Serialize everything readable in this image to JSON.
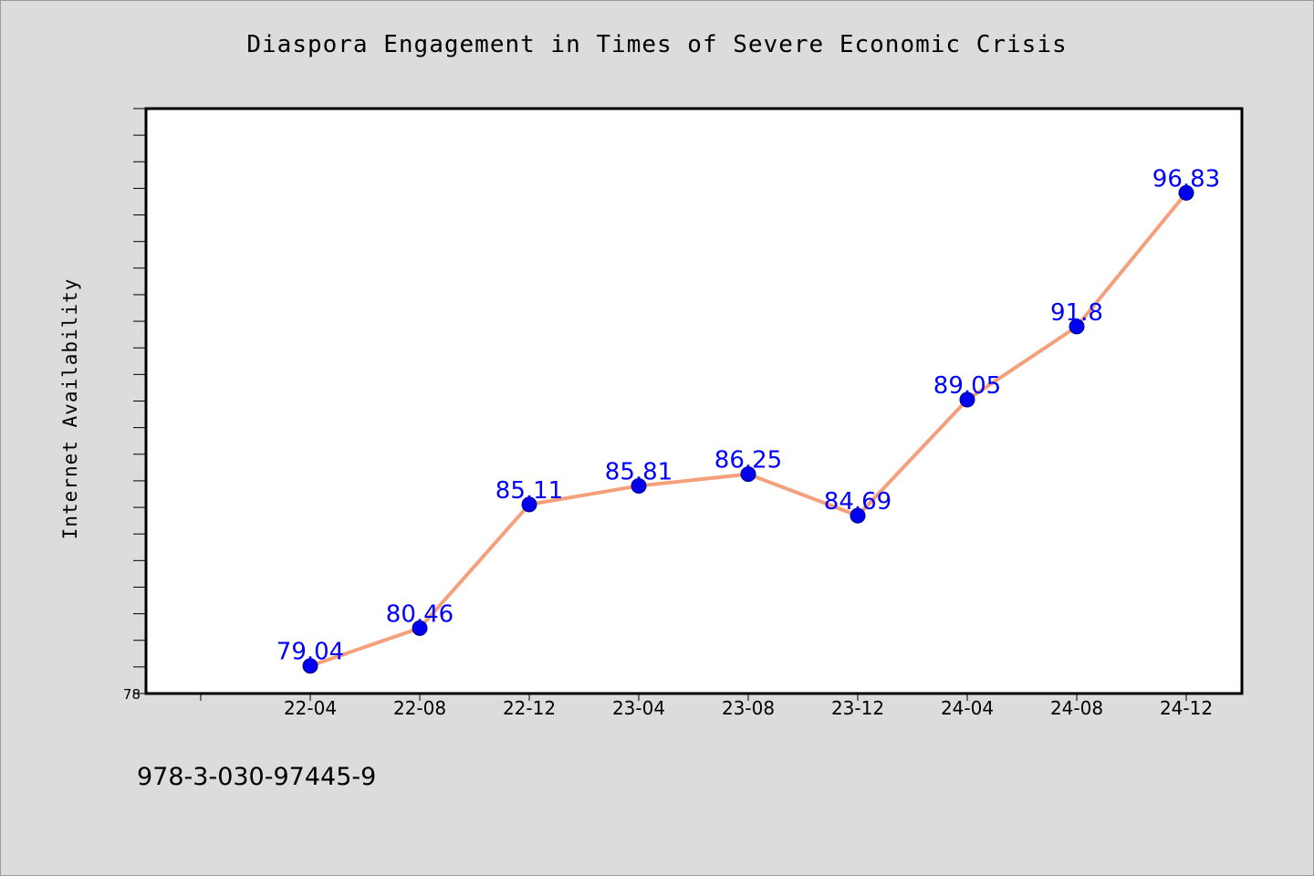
{
  "title": "Diaspora Engagement in Times of Severe Economic Crisis",
  "isbn": "978-3-030-97445-9",
  "chart_data": {
    "type": "line",
    "title": "Diaspora Engagement in Times of Severe Economic Crisis",
    "xlabel": "",
    "ylabel": "Internet Availability",
    "categories": [
      "22-04",
      "22-08",
      "22-12",
      "23-04",
      "23-08",
      "23-12",
      "24-04",
      "24-08",
      "24-12"
    ],
    "series": [
      {
        "values": [
          79.04,
          80.46,
          85.11,
          85.81,
          86.25,
          84.69,
          89.05,
          91.8,
          96.83
        ],
        "data_labels": [
          "79.04",
          "80.46",
          "85.11",
          "85.81",
          "86.25",
          "84.69",
          "89.05",
          "91.8",
          "96.83"
        ],
        "line_color": "#f4a07a",
        "marker_color": "#0000ee"
      }
    ],
    "ylim": [
      78,
      100
    ],
    "ytick_labels": [
      "78"
    ],
    "grid": false,
    "legend": "none",
    "label_color": "#0000ff"
  }
}
